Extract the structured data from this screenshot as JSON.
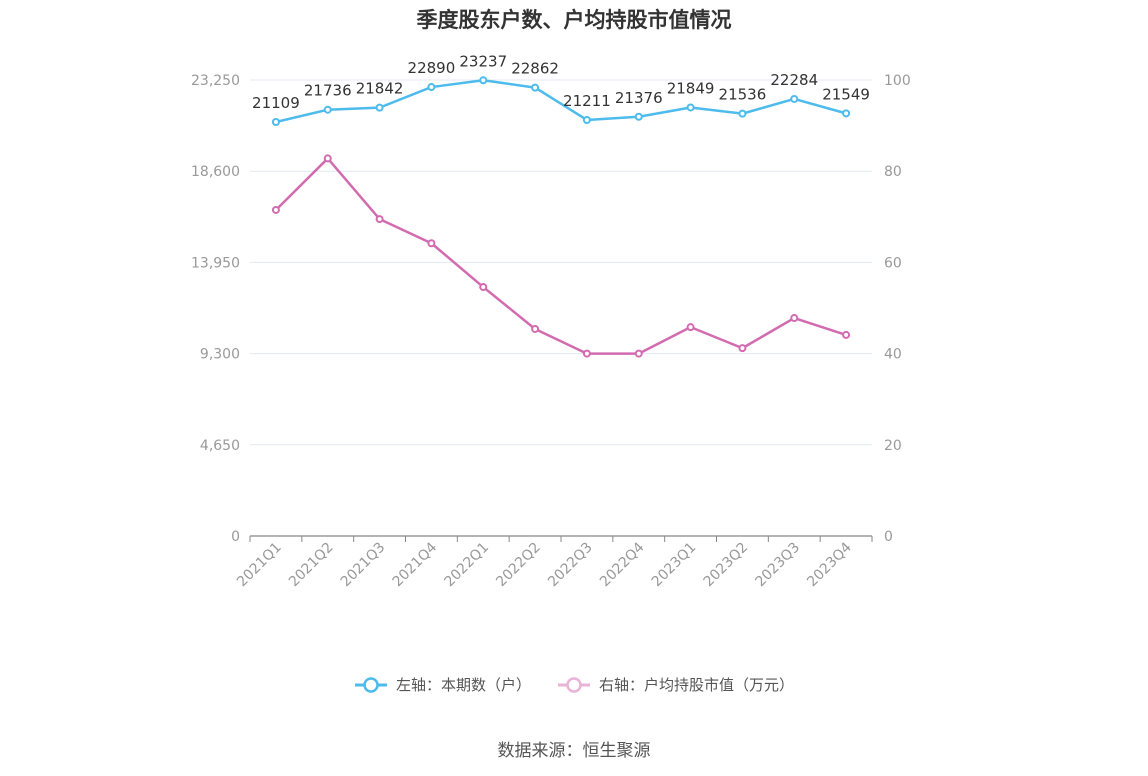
{
  "title": "季度股东户数、户均持股市值情况",
  "source": "数据来源：恒生聚源",
  "legend": {
    "left_label": "左轴：本期数（户）",
    "right_label": "右轴：户均持股市值（万元）"
  },
  "colors": {
    "left_series": "#4dbbeb",
    "right_series": "#d26bb0",
    "grid": "#e3e8f0",
    "axis_text": "#999999"
  },
  "chart_data": {
    "type": "line",
    "categories": [
      "2021Q1",
      "2021Q2",
      "2021Q3",
      "2021Q4",
      "2022Q1",
      "2022Q2",
      "2022Q3",
      "2022Q4",
      "2023Q1",
      "2023Q2",
      "2023Q3",
      "2023Q4"
    ],
    "left_axis": {
      "min": 0,
      "max": 23250,
      "ticks": [
        "0",
        "4,650",
        "9,300",
        "13,950",
        "18,600",
        "23,250"
      ]
    },
    "right_axis": {
      "min": 0,
      "max": 100,
      "ticks": [
        "0",
        "20",
        "40",
        "60",
        "80",
        "100"
      ]
    },
    "series": [
      {
        "name": "左轴：本期数（户）",
        "axis": "left",
        "values": [
          21109,
          21736,
          21842,
          22890,
          23237,
          22862,
          21211,
          21376,
          21849,
          21536,
          22284,
          21549
        ],
        "labels": [
          "21109",
          "21736",
          "21842",
          "22890",
          "23237",
          "22862",
          "21211",
          "21376",
          "21849",
          "21536",
          "22284",
          "21549"
        ]
      },
      {
        "name": "右轴：户均持股市值（万元）",
        "axis": "right",
        "values": [
          71.5,
          82.8,
          69.5,
          64.2,
          54.6,
          45.4,
          40.0,
          40.0,
          45.8,
          41.2,
          47.8,
          44.1
        ]
      }
    ]
  }
}
